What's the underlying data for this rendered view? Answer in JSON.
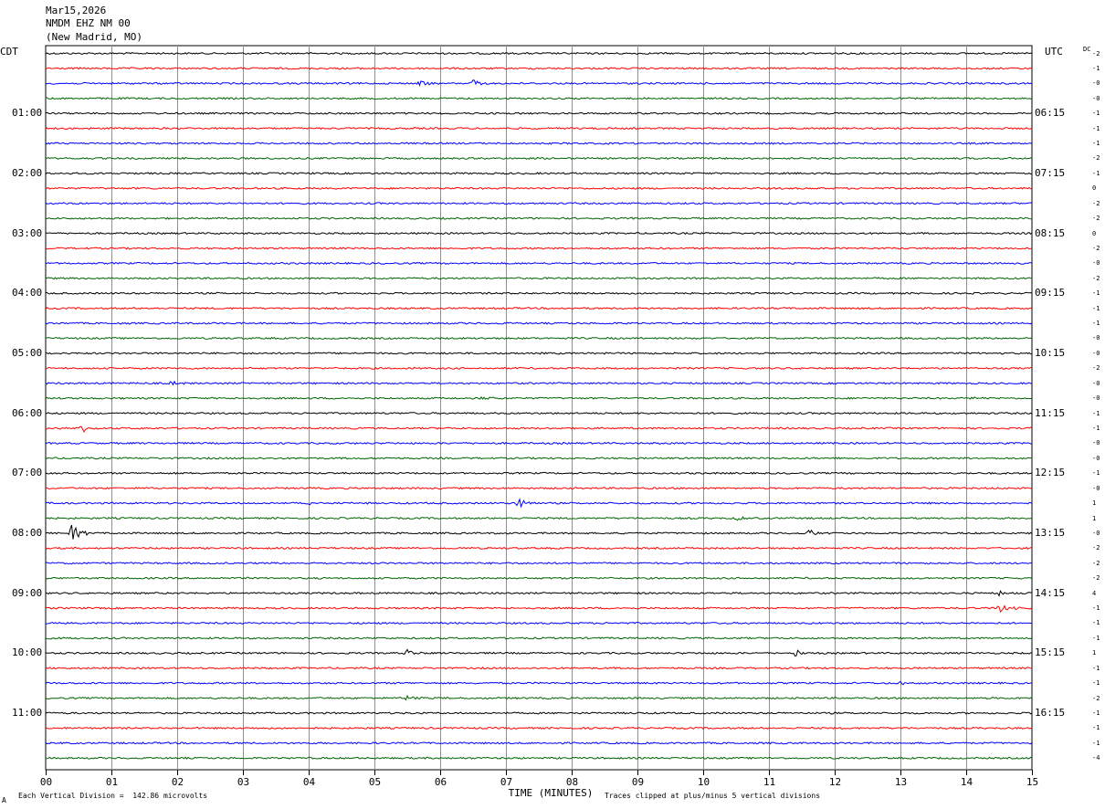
{
  "header": {
    "date": "Mar15,2026",
    "station": "NMDM EHZ NM 00",
    "location": "(New Madrid, MO)"
  },
  "left_tz": "CDT",
  "right_tz": "UTC",
  "dc_header": "DC",
  "footer": {
    "scale_note": "Each Vertical Division =  142.86 microvolts",
    "clip_note": "Traces clipped at plus/minus 5 vertical divisions",
    "corner_mark": "A"
  },
  "chart_data": {
    "type": "line",
    "title": "",
    "xlabel": "TIME (MINUTES)",
    "ylabel": "",
    "xlim": [
      0,
      15
    ],
    "x_ticks": [
      "00",
      "01",
      "02",
      "03",
      "04",
      "05",
      "06",
      "07",
      "08",
      "09",
      "10",
      "11",
      "12",
      "13",
      "14",
      "15"
    ],
    "trace_count": 48,
    "trace_colors": [
      "#000000",
      "#ff0000",
      "#0000ff",
      "#006400"
    ],
    "left_time_labels": [
      "01:00",
      "02:00",
      "03:00",
      "04:00",
      "05:00",
      "06:00",
      "07:00",
      "08:00",
      "09:00",
      "10:00",
      "11:00"
    ],
    "right_time_labels": [
      "06:15",
      "07:15",
      "08:15",
      "09:15",
      "10:15",
      "11:15",
      "12:15",
      "13:15",
      "14:15",
      "15:15",
      "16:15"
    ],
    "dc_offsets": [
      "-2",
      "-1",
      "-0",
      "-0",
      "-1",
      "-1",
      "-1",
      "-2",
      "-1",
      "0",
      "-2",
      "-2",
      "0",
      "-2",
      "-0",
      "-2",
      "-1",
      "-1",
      "-1",
      "-0",
      "-0",
      "-2",
      "-0",
      "-0",
      "-1",
      "-1",
      "-0",
      "-0",
      "-1",
      "-0",
      "1",
      "1",
      "-0",
      "-2",
      "-2",
      "-2",
      "4",
      "-1",
      "-1",
      "-1",
      "1",
      "-1",
      "-1",
      "-2",
      "-1",
      "-1",
      "-1",
      "-4"
    ],
    "events": [
      {
        "trace": 2,
        "minute": 5.7,
        "amplitude": 4
      },
      {
        "trace": 2,
        "minute": 6.5,
        "amplitude": 4
      },
      {
        "trace": 22,
        "minute": 1.9,
        "amplitude": 3
      },
      {
        "trace": 23,
        "minute": 6.6,
        "amplitude": 3
      },
      {
        "trace": 23,
        "minute": 14.1,
        "amplitude": 3
      },
      {
        "trace": 25,
        "minute": 0.55,
        "amplitude": 5
      },
      {
        "trace": 30,
        "minute": 7.2,
        "amplitude": 7
      },
      {
        "trace": 30,
        "minute": 4.0,
        "amplitude": 2
      },
      {
        "trace": 31,
        "minute": 10.5,
        "amplitude": 4
      },
      {
        "trace": 32,
        "minute": 0.4,
        "amplitude": 11
      },
      {
        "trace": 32,
        "minute": 11.6,
        "amplitude": 5
      },
      {
        "trace": 36,
        "minute": 14.5,
        "amplitude": 3
      },
      {
        "trace": 37,
        "minute": 14.5,
        "amplitude": 6
      },
      {
        "trace": 40,
        "minute": 5.5,
        "amplitude": 4
      },
      {
        "trace": 40,
        "minute": 11.4,
        "amplitude": 4
      },
      {
        "trace": 42,
        "minute": 13.0,
        "amplitude": 3
      },
      {
        "trace": 43,
        "minute": 5.5,
        "amplitude": 4
      }
    ]
  }
}
